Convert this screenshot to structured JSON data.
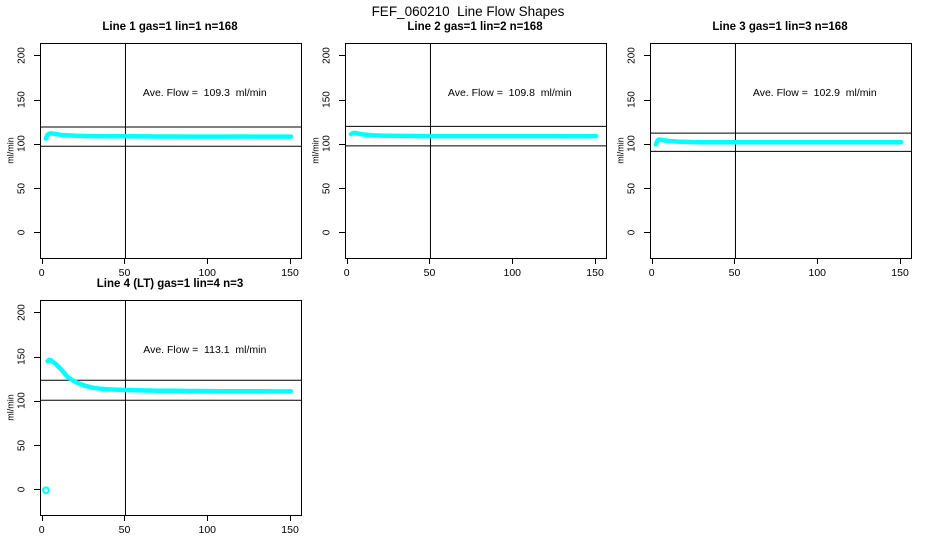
{
  "figure": {
    "title": "FEF_060210  Line Flow Shapes",
    "background_color": "#ffffff",
    "axis_color": "#000000",
    "data_color": "#00ffff"
  },
  "chart_data": [
    {
      "type": "scatter",
      "title": "Line 1 gas=1 lin=1 n=168",
      "ylabel": "ml/min",
      "xlabel": "",
      "annotation": "Ave. Flow =  109.3  ml/min",
      "ave_flow_ml_min": 109.3,
      "n_points": 168,
      "xlim": [
        -1,
        156
      ],
      "ylim": [
        -28,
        214
      ],
      "xticks": [
        0,
        50,
        100,
        150
      ],
      "yticks": [
        0,
        50,
        100,
        150,
        200
      ],
      "vline_x": 50,
      "hlines": [
        120.2,
        98.4
      ],
      "points": [
        [
          2,
          107
        ],
        [
          3,
          111.5
        ],
        [
          4,
          112.5
        ],
        [
          5,
          113
        ],
        [
          6,
          112.7
        ],
        [
          8,
          112.2
        ],
        [
          10,
          111.6
        ],
        [
          12,
          111.1
        ],
        [
          15,
          110.7
        ],
        [
          20,
          110.2
        ],
        [
          25,
          110.0
        ],
        [
          30,
          109.9
        ],
        [
          40,
          109.7
        ],
        [
          50,
          109.6
        ],
        [
          60,
          109.5
        ],
        [
          70,
          109.4
        ],
        [
          80,
          109.4
        ],
        [
          90,
          109.3
        ],
        [
          100,
          109.3
        ],
        [
          110,
          109.3
        ],
        [
          120,
          109.4
        ],
        [
          130,
          109.3
        ],
        [
          140,
          109.3
        ],
        [
          150,
          109.3
        ]
      ],
      "outliers": []
    },
    {
      "type": "scatter",
      "title": "Line 2 gas=1 lin=2 n=168",
      "ylabel": "ml/min",
      "xlabel": "",
      "annotation": "Ave. Flow =  109.8  ml/min",
      "ave_flow_ml_min": 109.8,
      "n_points": 168,
      "xlim": [
        -1,
        156
      ],
      "ylim": [
        -28,
        214
      ],
      "xticks": [
        0,
        50,
        100,
        150
      ],
      "yticks": [
        0,
        50,
        100,
        150,
        200
      ],
      "vline_x": 50,
      "hlines": [
        120.8,
        98.8
      ],
      "points": [
        [
          2,
          112
        ],
        [
          3,
          113
        ],
        [
          4,
          113.5
        ],
        [
          5,
          113.2
        ],
        [
          6,
          112.8
        ],
        [
          8,
          112.2
        ],
        [
          10,
          111.6
        ],
        [
          12,
          111.2
        ],
        [
          15,
          110.8
        ],
        [
          20,
          110.4
        ],
        [
          25,
          110.2
        ],
        [
          30,
          110.1
        ],
        [
          40,
          110.0
        ],
        [
          50,
          109.9
        ],
        [
          60,
          109.9
        ],
        [
          80,
          109.8
        ],
        [
          100,
          109.8
        ],
        [
          120,
          109.8
        ],
        [
          140,
          109.7
        ],
        [
          150,
          109.8
        ]
      ],
      "outliers": []
    },
    {
      "type": "scatter",
      "title": "Line 3 gas=1 lin=3 n=168",
      "ylabel": "ml/min",
      "xlabel": "",
      "annotation": "Ave. Flow =  102.9  ml/min",
      "ave_flow_ml_min": 102.9,
      "n_points": 168,
      "xlim": [
        -1,
        156
      ],
      "ylim": [
        -28,
        214
      ],
      "xticks": [
        0,
        50,
        100,
        150
      ],
      "yticks": [
        0,
        50,
        100,
        150,
        200
      ],
      "vline_x": 50,
      "hlines": [
        113.2,
        92.6
      ],
      "points": [
        [
          2,
          100.5
        ],
        [
          3,
          105
        ],
        [
          4,
          106
        ],
        [
          5,
          105.8
        ],
        [
          6,
          105.4
        ],
        [
          8,
          104.8
        ],
        [
          10,
          104.3
        ],
        [
          12,
          104
        ],
        [
          15,
          103.6
        ],
        [
          20,
          103.3
        ],
        [
          25,
          103.1
        ],
        [
          30,
          103.0
        ],
        [
          40,
          102.9
        ],
        [
          60,
          102.9
        ],
        [
          80,
          102.8
        ],
        [
          100,
          102.9
        ],
        [
          120,
          102.8
        ],
        [
          140,
          102.9
        ],
        [
          150,
          102.9
        ]
      ],
      "outliers": []
    },
    {
      "type": "scatter",
      "title": "Line 4 (LT) gas=1 lin=4 n=3",
      "ylabel": "ml/min",
      "xlabel": "",
      "annotation": "Ave. Flow =  113.1  ml/min",
      "ave_flow_ml_min": 113.1,
      "n_points": 3,
      "xlim": [
        -1,
        156
      ],
      "ylim": [
        -28,
        214
      ],
      "xticks": [
        0,
        50,
        100,
        150
      ],
      "yticks": [
        0,
        50,
        100,
        150,
        200
      ],
      "vline_x": 50,
      "hlines": [
        124.4,
        101.8
      ],
      "points": [
        [
          3,
          146
        ],
        [
          4,
          147.5
        ],
        [
          5,
          147
        ],
        [
          6,
          145.5
        ],
        [
          8,
          142.5
        ],
        [
          10,
          139
        ],
        [
          12,
          135
        ],
        [
          15,
          128
        ],
        [
          18,
          124.5
        ],
        [
          21,
          121.5
        ],
        [
          25,
          118.5
        ],
        [
          30,
          116
        ],
        [
          35,
          114.8
        ],
        [
          40,
          114
        ],
        [
          50,
          113.3
        ],
        [
          60,
          112.9
        ],
        [
          70,
          112.6
        ],
        [
          80,
          112.4
        ],
        [
          90,
          112.2
        ],
        [
          100,
          112.1
        ],
        [
          110,
          112.0
        ],
        [
          120,
          111.9
        ],
        [
          130,
          111.9
        ],
        [
          140,
          111.8
        ],
        [
          150,
          111.8
        ]
      ],
      "outliers": [
        [
          2,
          0
        ]
      ]
    }
  ]
}
